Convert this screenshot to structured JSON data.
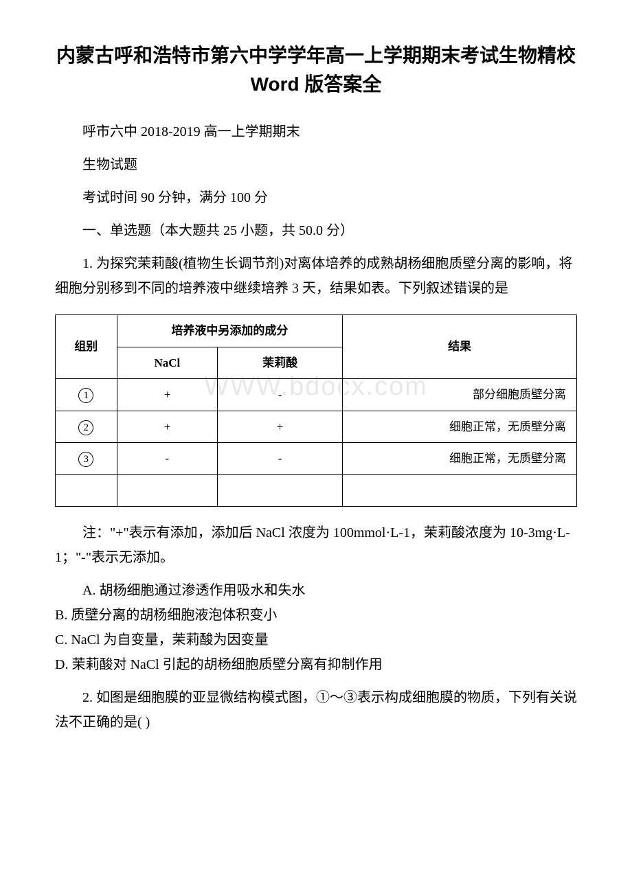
{
  "document": {
    "title": "内蒙古呼和浩特市第六中学学年高一上学期期末考试生物精校 Word 版答案全",
    "subtitle1": "呼市六中 2018-2019 高一上学期期末",
    "subtitle2": "生物试题",
    "exam_info": "考试时间 90 分钟，满分 100 分",
    "section_heading": "一、单选题（本大题共 25 小题，共 50.0 分）",
    "question1": {
      "number_text": "1. 为探究茉莉酸(植物生长调节剂)对离体培养的成熟胡杨细胞质壁分离的影响，将细胞分别移到不同的培养液中继续培养 3 天，结果如表。下列叙述错误的是",
      "table": {
        "header1": "组别",
        "header2": "培养液中另添加的成分",
        "header3": "结果",
        "col_nacl": "NaCl",
        "col_jasmine": "茉莉酸",
        "row1_label": "①",
        "row1_nacl": "+",
        "row1_jasmine": "-",
        "row1_result": "部分细胞质壁分离",
        "row2_label": "②",
        "row2_nacl": "+",
        "row2_jasmine": "+",
        "row2_result": "细胞正常，无质壁分离",
        "row3_label": "③",
        "row3_nacl": "-",
        "row3_jasmine": "-",
        "row3_result": "细胞正常，无质壁分离"
      },
      "note": "注：\"+\"表示有添加，添加后 NaCl 浓度为 100mmol·L-1，茉莉酸浓度为 10-3mg·L-1；\"-\"表示无添加。",
      "options": {
        "A": "A. 胡杨细胞通过渗透作用吸水和失水",
        "B": "B. 质壁分离的胡杨细胞液泡体积变小",
        "C": "C. NaCl 为自变量，茉莉酸为因变量",
        "D": "D. 茉莉酸对 NaCl 引起的胡杨细胞质壁分离有抑制作用"
      }
    },
    "question2": {
      "text": "2. 如图是细胞膜的亚显微结构模式图，①～③表示构成细胞膜的物质，下列有关说法不正确的是( )"
    },
    "watermark": "WWW.bdocx.com",
    "styling": {
      "background_color": "#ffffff",
      "text_color": "#000000",
      "border_color": "#000000",
      "watermark_color": "#e8e8e8",
      "title_fontsize": 28,
      "body_fontsize": 20,
      "table_fontsize": 17
    }
  }
}
